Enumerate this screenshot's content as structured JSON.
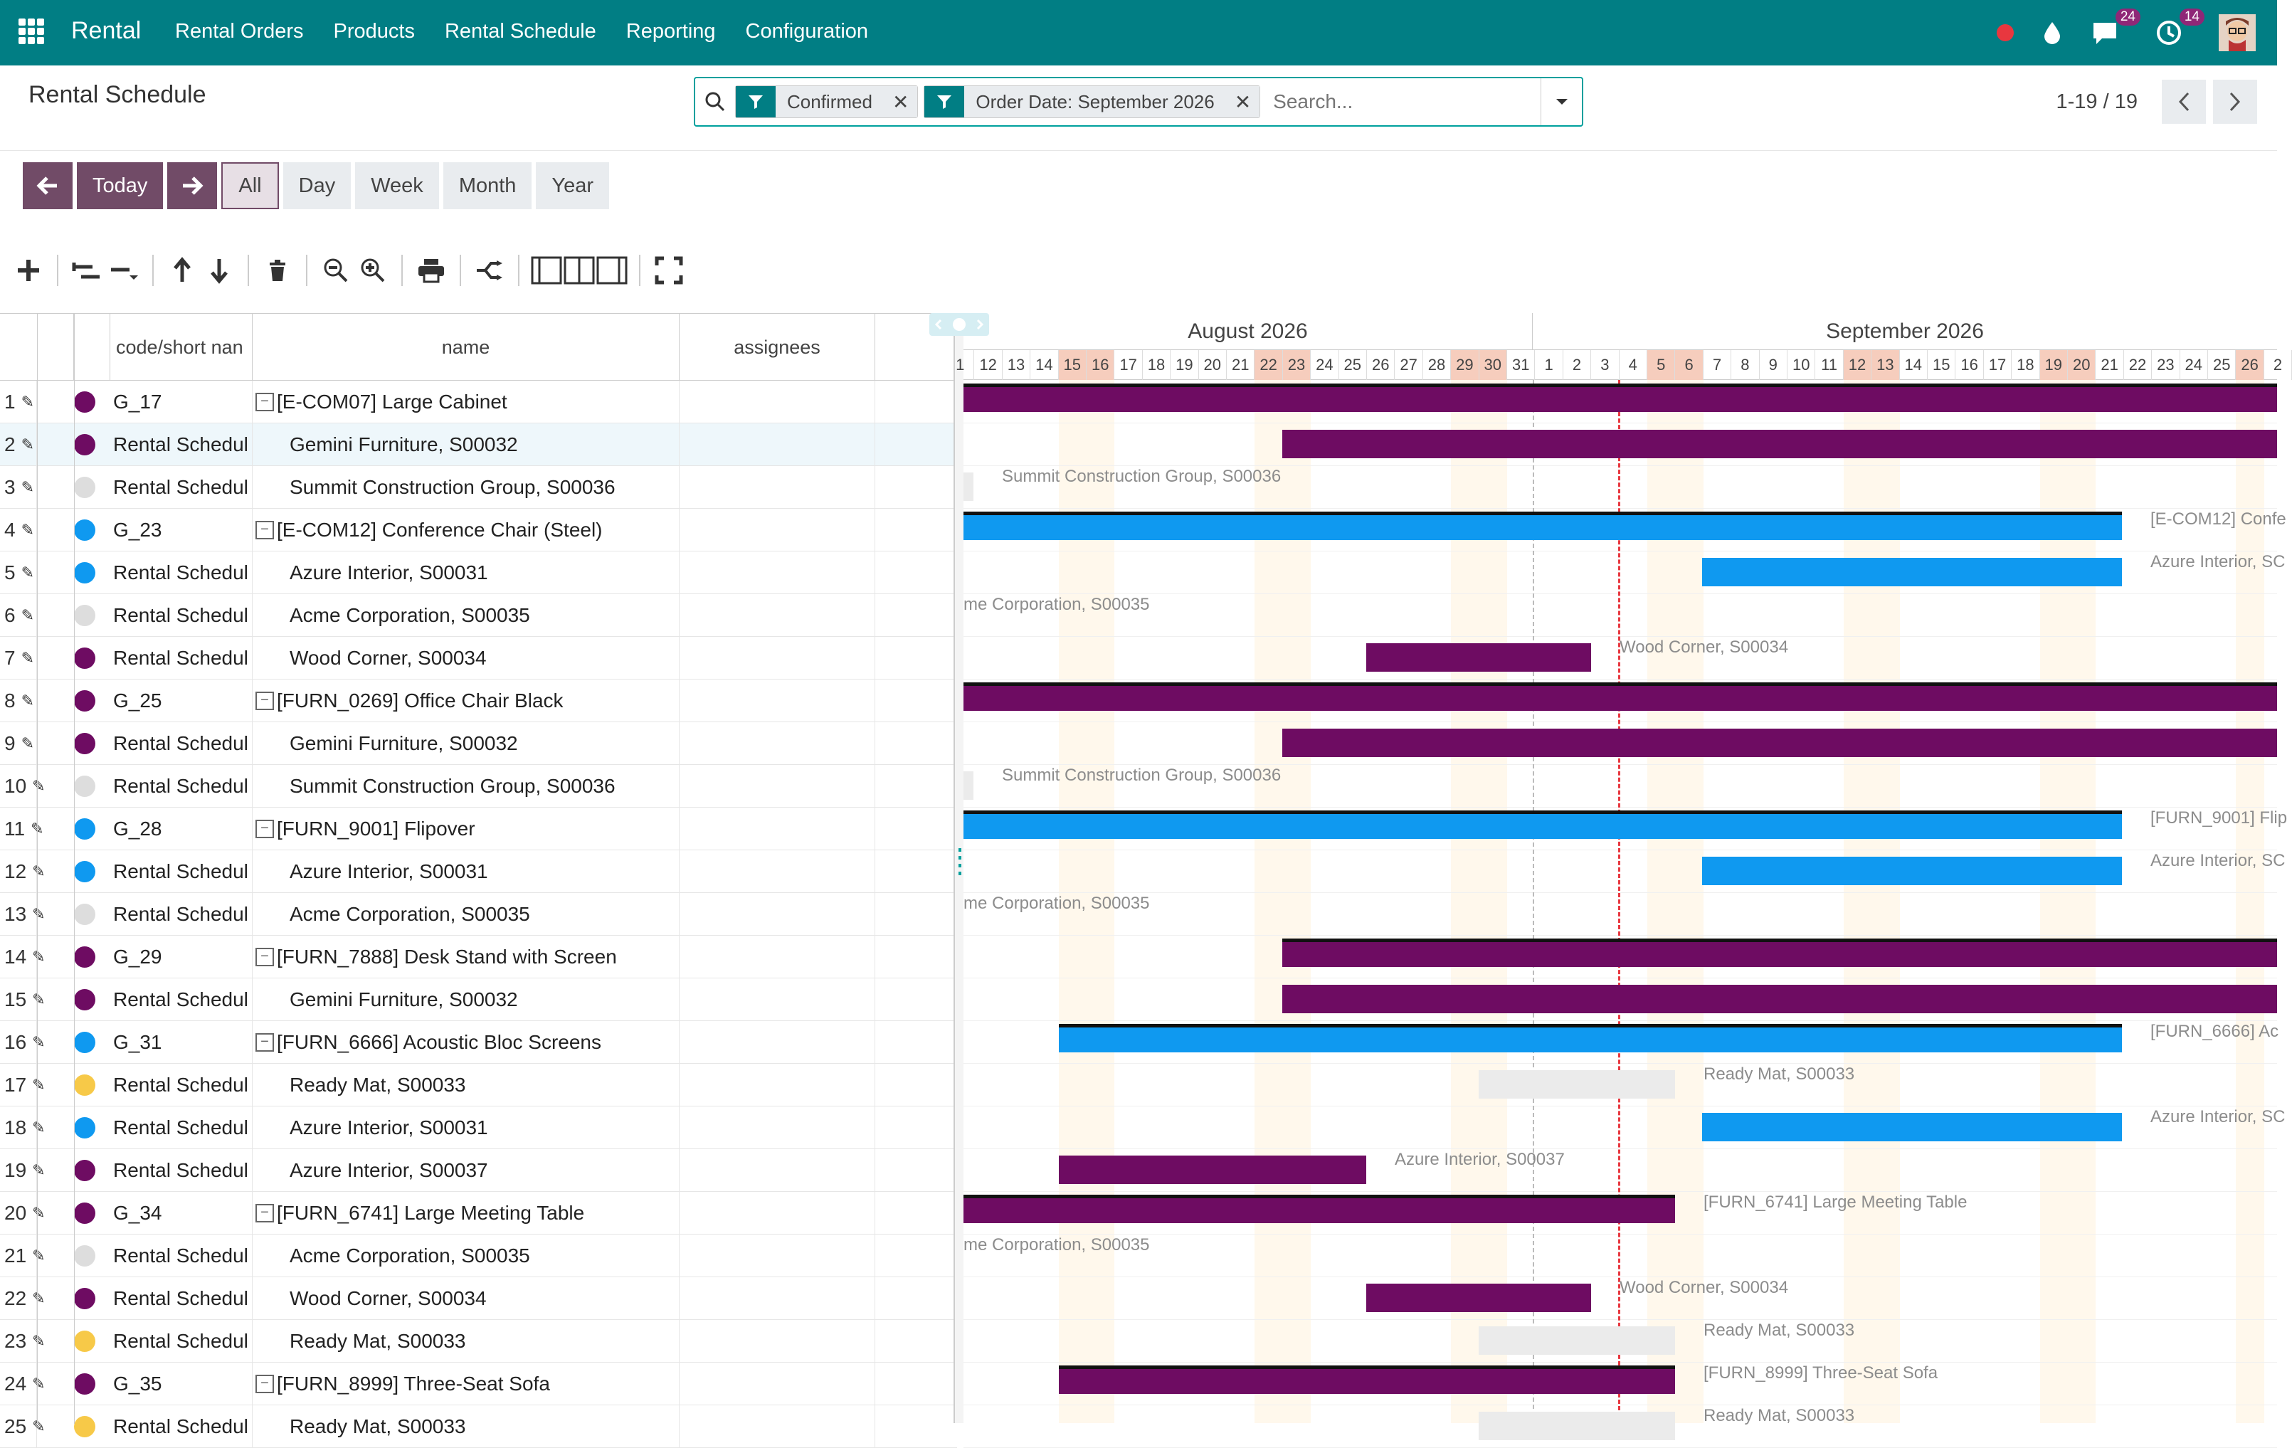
{
  "app": {
    "name": "Rental"
  },
  "nav": {
    "menu": [
      "Rental Orders",
      "Products",
      "Rental Schedule",
      "Reporting",
      "Configuration"
    ],
    "messages_count": "24",
    "activities_count": "14"
  },
  "page": {
    "title": "Rental Schedule"
  },
  "search": {
    "facets": [
      "Confirmed",
      "Order Date: September 2026"
    ],
    "placeholder": "Search..."
  },
  "pager": {
    "value": "1-19 / 19"
  },
  "scale": {
    "today": "Today",
    "options": [
      "All",
      "Day",
      "Week",
      "Month",
      "Year"
    ],
    "active": "All"
  },
  "grid": {
    "columns": [
      "code/short nan",
      "name",
      "assignees"
    ],
    "rows": [
      {
        "num": "1",
        "color": "#6e0c62",
        "code": "G_17",
        "name": "[E-COM07] Large Cabinet",
        "parent": true
      },
      {
        "num": "2",
        "color": "#6e0c62",
        "code": "Rental Schedul",
        "name": "Gemini Furniture, S00032",
        "parent": false
      },
      {
        "num": "3",
        "color": "#dddddd",
        "code": "Rental Schedul",
        "name": "Summit Construction Group, S00036",
        "parent": false
      },
      {
        "num": "4",
        "color": "#0f99f0",
        "code": "G_23",
        "name": "[E-COM12] Conference Chair (Steel)",
        "parent": true
      },
      {
        "num": "5",
        "color": "#0f99f0",
        "code": "Rental Schedul",
        "name": "Azure Interior, S00031",
        "parent": false
      },
      {
        "num": "6",
        "color": "#dddddd",
        "code": "Rental Schedul",
        "name": "Acme Corporation, S00035",
        "parent": false
      },
      {
        "num": "7",
        "color": "#6e0c62",
        "code": "Rental Schedul",
        "name": "Wood Corner, S00034",
        "parent": false
      },
      {
        "num": "8",
        "color": "#6e0c62",
        "code": "G_25",
        "name": "[FURN_0269] Office Chair Black",
        "parent": true
      },
      {
        "num": "9",
        "color": "#6e0c62",
        "code": "Rental Schedul",
        "name": "Gemini Furniture, S00032",
        "parent": false
      },
      {
        "num": "10",
        "color": "#dddddd",
        "code": "Rental Schedul",
        "name": "Summit Construction Group, S00036",
        "parent": false
      },
      {
        "num": "11",
        "color": "#0f99f0",
        "code": "G_28",
        "name": "[FURN_9001] Flipover",
        "parent": true
      },
      {
        "num": "12",
        "color": "#0f99f0",
        "code": "Rental Schedul",
        "name": "Azure Interior, S00031",
        "parent": false
      },
      {
        "num": "13",
        "color": "#dddddd",
        "code": "Rental Schedul",
        "name": "Acme Corporation, S00035",
        "parent": false
      },
      {
        "num": "14",
        "color": "#6e0c62",
        "code": "G_29",
        "name": "[FURN_7888] Desk Stand with Screen",
        "parent": true
      },
      {
        "num": "15",
        "color": "#6e0c62",
        "code": "Rental Schedul",
        "name": "Gemini Furniture, S00032",
        "parent": false
      },
      {
        "num": "16",
        "color": "#0f99f0",
        "code": "G_31",
        "name": "[FURN_6666] Acoustic Bloc Screens",
        "parent": true
      },
      {
        "num": "17",
        "color": "#f7c948",
        "code": "Rental Schedul",
        "name": "Ready Mat, S00033",
        "parent": false
      },
      {
        "num": "18",
        "color": "#0f99f0",
        "code": "Rental Schedul",
        "name": "Azure Interior, S00031",
        "parent": false
      },
      {
        "num": "19",
        "color": "#6e0c62",
        "code": "Rental Schedul",
        "name": "Azure Interior, S00037",
        "parent": false
      },
      {
        "num": "20",
        "color": "#6e0c62",
        "code": "G_34",
        "name": "[FURN_6741] Large Meeting Table",
        "parent": true
      },
      {
        "num": "21",
        "color": "#dddddd",
        "code": "Rental Schedul",
        "name": "Acme Corporation, S00035",
        "parent": false
      },
      {
        "num": "22",
        "color": "#6e0c62",
        "code": "Rental Schedul",
        "name": "Wood Corner, S00034",
        "parent": false
      },
      {
        "num": "23",
        "color": "#f7c948",
        "code": "Rental Schedul",
        "name": "Ready Mat, S00033",
        "parent": false
      },
      {
        "num": "24",
        "color": "#6e0c62",
        "code": "G_35",
        "name": "[FURN_8999] Three-Seat Sofa",
        "parent": true
      },
      {
        "num": "25",
        "color": "#f7c948",
        "code": "Rental Schedul",
        "name": "Ready Mat, S00033",
        "parent": false
      }
    ]
  },
  "timeline": {
    "months": [
      "August 2026",
      "September 2026"
    ],
    "days": [
      {
        "d": "1",
        "we": false
      },
      {
        "d": "12",
        "we": false
      },
      {
        "d": "13",
        "we": false
      },
      {
        "d": "14",
        "we": false
      },
      {
        "d": "15",
        "we": true
      },
      {
        "d": "16",
        "we": true
      },
      {
        "d": "17",
        "we": false
      },
      {
        "d": "18",
        "we": false
      },
      {
        "d": "19",
        "we": false
      },
      {
        "d": "20",
        "we": false
      },
      {
        "d": "21",
        "we": false
      },
      {
        "d": "22",
        "we": true
      },
      {
        "d": "23",
        "we": true
      },
      {
        "d": "24",
        "we": false
      },
      {
        "d": "25",
        "we": false
      },
      {
        "d": "26",
        "we": false
      },
      {
        "d": "27",
        "we": false
      },
      {
        "d": "28",
        "we": false
      },
      {
        "d": "29",
        "we": true
      },
      {
        "d": "30",
        "we": true
      },
      {
        "d": "31",
        "we": false
      },
      {
        "d": "1",
        "we": false
      },
      {
        "d": "2",
        "we": false
      },
      {
        "d": "3",
        "we": false
      },
      {
        "d": "4",
        "we": false
      },
      {
        "d": "5",
        "we": true
      },
      {
        "d": "6",
        "we": true
      },
      {
        "d": "7",
        "we": false
      },
      {
        "d": "8",
        "we": false
      },
      {
        "d": "9",
        "we": false
      },
      {
        "d": "10",
        "we": false
      },
      {
        "d": "11",
        "we": false
      },
      {
        "d": "12",
        "we": true
      },
      {
        "d": "13",
        "we": true
      },
      {
        "d": "14",
        "we": false
      },
      {
        "d": "15",
        "we": false
      },
      {
        "d": "16",
        "we": false
      },
      {
        "d": "17",
        "we": false
      },
      {
        "d": "18",
        "we": false
      },
      {
        "d": "19",
        "we": true
      },
      {
        "d": "20",
        "we": true
      },
      {
        "d": "21",
        "we": false
      },
      {
        "d": "22",
        "we": false
      },
      {
        "d": "23",
        "we": false
      },
      {
        "d": "24",
        "we": false
      },
      {
        "d": "25",
        "we": false
      },
      {
        "d": "26",
        "we": true
      },
      {
        "d": "2",
        "we": false
      }
    ],
    "labels": {
      "summit": "Summit Construction Group, S00036",
      "econf": "[E-COM12] Confe",
      "azure": "Azure Interior, SC",
      "acme": "me Corporation, S00035",
      "wood": "Wood Corner, S00034",
      "flip": "[FURN_9001] Flip",
      "acoustic": "[FURN_6666] Ac",
      "readymat": "Ready Mat, S00033",
      "azure37": "Azure Interior, S00037",
      "meeting": "[FURN_6741] Large Meeting Table",
      "sofa": "[FURN_8999] Three-Seat Sofa"
    }
  }
}
